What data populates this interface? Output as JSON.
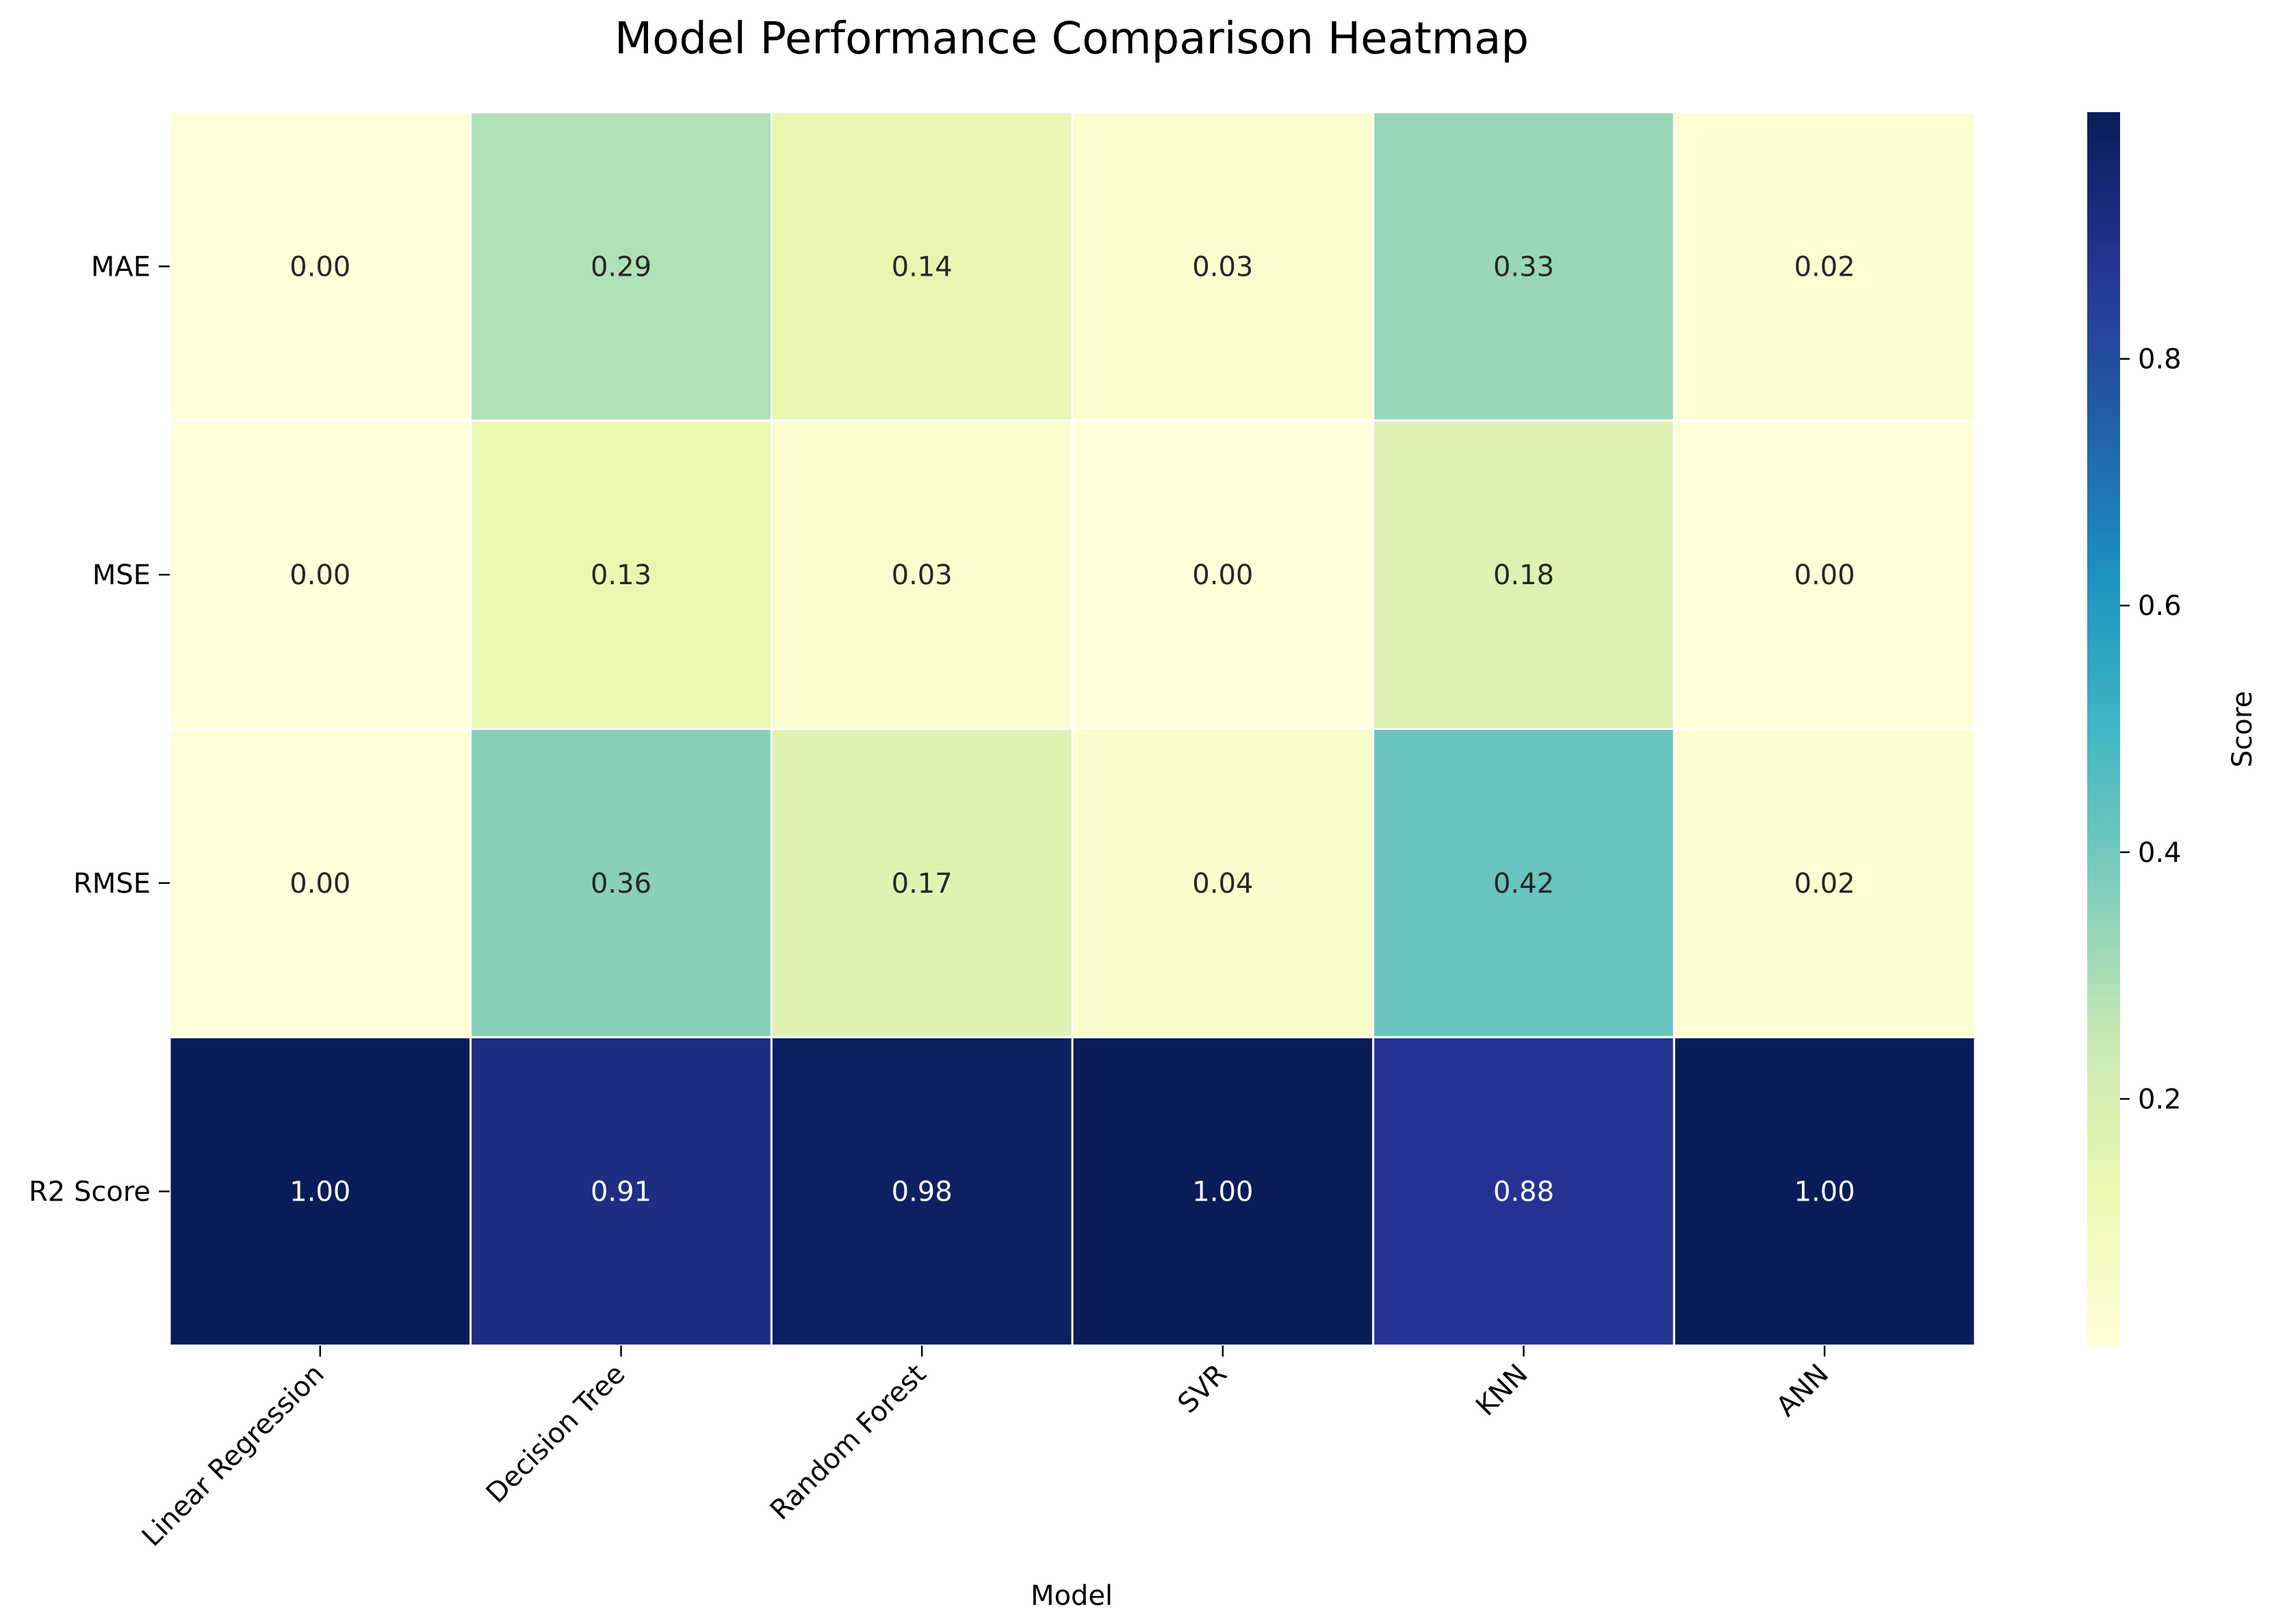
{
  "chart_data": {
    "type": "heatmap",
    "title": "Model Performance Comparison Heatmap",
    "xlabel": "Model",
    "ylabel": "",
    "x_categories": [
      "Linear Regression",
      "Decision Tree",
      "Random Forest",
      "SVR",
      "KNN",
      "ANN"
    ],
    "y_categories": [
      "MAE",
      "MSE",
      "RMSE",
      "R2 Score"
    ],
    "values": [
      [
        0.0,
        0.29,
        0.14,
        0.03,
        0.33,
        0.02
      ],
      [
        0.0,
        0.13,
        0.03,
        0.0,
        0.18,
        0.0
      ],
      [
        0.0,
        0.36,
        0.17,
        0.04,
        0.42,
        0.02
      ],
      [
        1.0,
        0.91,
        0.98,
        1.0,
        0.88,
        1.0
      ]
    ],
    "value_labels": [
      [
        "0.00",
        "0.29",
        "0.14",
        "0.03",
        "0.33",
        "0.02"
      ],
      [
        "0.00",
        "0.13",
        "0.03",
        "0.00",
        "0.18",
        "0.00"
      ],
      [
        "0.00",
        "0.36",
        "0.17",
        "0.04",
        "0.42",
        "0.02"
      ],
      [
        "1.00",
        "0.91",
        "0.98",
        "1.00",
        "0.88",
        "1.00"
      ]
    ],
    "colormap": "YlGnBu",
    "color_range": [
      0,
      1
    ],
    "colorbar": {
      "label": "Score",
      "ticks": [
        0.2,
        0.4,
        0.6,
        0.8
      ],
      "tick_labels": [
        "0.2",
        "0.4",
        "0.6",
        "0.8"
      ]
    },
    "cell_border_color": "#ffffff",
    "text_color_light_cells": "#262626",
    "text_color_dark_cells": "#ffffff"
  }
}
